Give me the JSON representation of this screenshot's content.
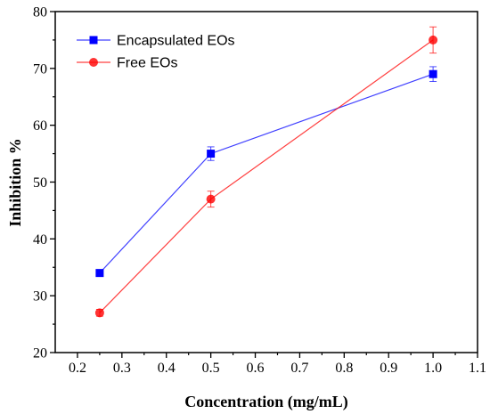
{
  "chart_data": {
    "type": "line",
    "xlabel": "Concentration (mg/mL)",
    "ylabel": "Inhibition %",
    "xlim": [
      0.15,
      1.1
    ],
    "ylim": [
      20,
      80
    ],
    "xticks": [
      0.2,
      0.3,
      0.4,
      0.5,
      0.6,
      0.7,
      0.8,
      0.9,
      1.0,
      1.1
    ],
    "xtick_labels": [
      "0.2",
      "0.3",
      "0.4",
      "0.5",
      "0.6",
      "0.7",
      "0.8",
      "0.9",
      "1.0",
      "1.1"
    ],
    "yticks": [
      20,
      30,
      40,
      50,
      60,
      70,
      80
    ],
    "ytick_labels": [
      "20",
      "30",
      "40",
      "50",
      "60",
      "70",
      "80"
    ],
    "grid": false,
    "legend_position": "top-left",
    "series": [
      {
        "name": "Encapsulated EOs",
        "color": "#0000ff",
        "marker": "square",
        "x": [
          0.25,
          0.5,
          1.0
        ],
        "y": [
          34,
          55,
          69
        ],
        "error": [
          0.3,
          1.2,
          1.3
        ]
      },
      {
        "name": "Free EOs",
        "color": "#ff0000",
        "marker": "circle",
        "x": [
          0.25,
          0.5,
          1.0
        ],
        "y": [
          27,
          47,
          75
        ],
        "error": [
          0.6,
          1.4,
          2.3
        ]
      }
    ]
  }
}
